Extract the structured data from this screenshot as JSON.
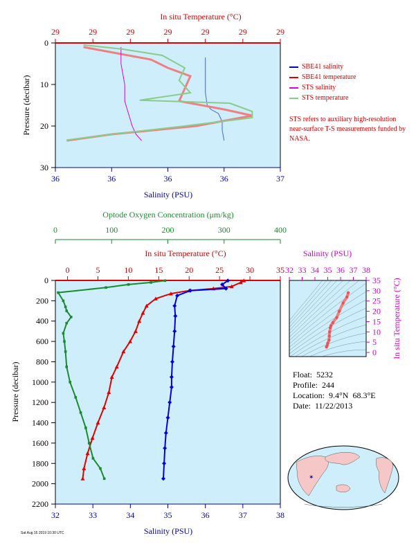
{
  "colors": {
    "plot_bg": "#cdeefa",
    "temperature": "#e10000",
    "salinity": "#0000dd",
    "oxygen": "#1a8a2f",
    "sts_salinity": "#dd00dd",
    "sts_temperature": "#88cc88",
    "ts_axis": "#cc00cc"
  },
  "legend": [
    {
      "label": "SBE41 salinity",
      "color": "#0000cc"
    },
    {
      "label": "SBE41 temperature",
      "color": "#dd0000"
    },
    {
      "label": "STS salinity",
      "color": "#dd00dd"
    },
    {
      "label": "STS temperature",
      "color": "#88cc88"
    }
  ],
  "note": "STS refers to auxiliary high-resolution near-surface T-S measurements funded by NASA.",
  "info": {
    "float": "Float:  5232",
    "profile": "Profile:  244",
    "location": "Location:  9.4°N  68.3°E",
    "date": "Date:  11/22/2013"
  },
  "footer": "Sat Aug 16 2019 10:30 UTC",
  "chart_data": [
    {
      "type": "line",
      "panel": "near-surface",
      "ylabel": "Pressure (decibar)",
      "ylim": [
        30,
        0
      ],
      "yticks": [
        "0",
        "10",
        "20",
        "30"
      ],
      "x_bottom": {
        "label": "Salinity (PSU)",
        "ticks": [
          "36",
          "36",
          "36",
          "36",
          "37"
        ],
        "range": [
          35.8,
          37.0
        ]
      },
      "x_top": {
        "label": "In situ Temperature (°C)",
        "ticks": [
          "29",
          "29",
          "29",
          "29",
          "29",
          "29",
          "29"
        ],
        "range": [
          28.9,
          29.3
        ]
      },
      "series": [
        {
          "name": "SBE41 salinity",
          "axis": "bottom",
          "values": [
            [
              36.6,
              3.5
            ],
            [
              36.6,
              8
            ],
            [
              36.6,
              12
            ],
            [
              36.61,
              15
            ],
            [
              36.63,
              16
            ],
            [
              36.67,
              17
            ],
            [
              36.68,
              18
            ],
            [
              36.69,
              19
            ],
            [
              36.69,
              21
            ],
            [
              36.7,
              23.5
            ]
          ]
        },
        {
          "name": "SBE41 temperature",
          "axis": "top",
          "values": [
            [
              28.95,
              1
            ],
            [
              29.07,
              4
            ],
            [
              29.1,
              6
            ],
            [
              29.14,
              8
            ],
            [
              29.13,
              11
            ],
            [
              29.12,
              14
            ],
            [
              29.2,
              16
            ],
            [
              29.25,
              17.5
            ],
            [
              29.15,
              20
            ],
            [
              29.0,
              22
            ],
            [
              28.92,
              23.5
            ]
          ]
        },
        {
          "name": "STS salinity",
          "axis": "bottom",
          "values": [
            [
              36.15,
              1
            ],
            [
              36.15,
              5
            ],
            [
              36.17,
              10
            ],
            [
              36.17,
              14
            ],
            [
              36.19,
              17
            ],
            [
              36.21,
              20
            ],
            [
              36.23,
              22
            ],
            [
              36.26,
              23.5
            ]
          ]
        },
        {
          "name": "STS temperature",
          "axis": "top",
          "values": [
            [
              28.95,
              0.5
            ],
            [
              29.02,
              1.5
            ],
            [
              29.09,
              3
            ],
            [
              29.13,
              6
            ],
            [
              29.12,
              9
            ],
            [
              29.14,
              12
            ],
            [
              29.05,
              13.8
            ],
            [
              29.21,
              14.5
            ],
            [
              29.25,
              16.5
            ],
            [
              29.25,
              18
            ],
            [
              29.13,
              20
            ],
            [
              29.0,
              22
            ],
            [
              28.92,
              23.4
            ]
          ]
        }
      ]
    },
    {
      "type": "line",
      "panel": "full-profile",
      "ylabel": "Pressure (decibar)",
      "ylim": [
        2200,
        0
      ],
      "yticks": [
        "0",
        "200",
        "400",
        "600",
        "800",
        "1000",
        "1200",
        "1400",
        "1600",
        "1800",
        "2000",
        "2200"
      ],
      "x_bottom": {
        "label": "Salinity (PSU)",
        "ticks": [
          "32",
          "33",
          "34",
          "35",
          "36",
          "37",
          "38"
        ],
        "range": [
          32,
          38
        ]
      },
      "x_mid": {
        "label": "In situ Temperature (°C)",
        "ticks": [
          "0",
          "5",
          "10",
          "15",
          "20",
          "25",
          "30",
          "35"
        ],
        "range": [
          -2,
          35
        ]
      },
      "x_top": {
        "label": "Optode Oxygen Concentration (μm/kg)",
        "ticks": [
          "0",
          "100",
          "200",
          "300",
          "400"
        ],
        "range": [
          0,
          400
        ]
      },
      "series": [
        {
          "name": "Temperature",
          "axis": "mid",
          "values": [
            [
              29,
              2
            ],
            [
              28.5,
              20
            ],
            [
              27,
              60
            ],
            [
              24,
              80
            ],
            [
              20,
              100
            ],
            [
              17,
              130
            ],
            [
              14.5,
              180
            ],
            [
              13,
              250
            ],
            [
              12.4,
              320
            ],
            [
              11.8,
              400
            ],
            [
              11.2,
              500
            ],
            [
              10.3,
              600
            ],
            [
              9.2,
              700
            ],
            [
              8.1,
              850
            ],
            [
              7.3,
              950
            ],
            [
              6.8,
              1100
            ],
            [
              6,
              1250
            ],
            [
              5,
              1400
            ],
            [
              4.1,
              1550
            ],
            [
              3.3,
              1700
            ],
            [
              2.7,
              1850
            ],
            [
              2.5,
              1950
            ]
          ]
        },
        {
          "name": "Salinity",
          "axis": "bottom",
          "values": [
            [
              36.6,
              2
            ],
            [
              36.45,
              40
            ],
            [
              36.55,
              80
            ],
            [
              35.6,
              100
            ],
            [
              35.25,
              150
            ],
            [
              35.18,
              250
            ],
            [
              35.2,
              350
            ],
            [
              35.18,
              500
            ],
            [
              35.15,
              650
            ],
            [
              35.12,
              800
            ],
            [
              35.1,
              950
            ],
            [
              35.1,
              1050
            ],
            [
              35.05,
              1200
            ],
            [
              35.0,
              1350
            ],
            [
              34.95,
              1500
            ],
            [
              34.92,
              1650
            ],
            [
              34.9,
              1800
            ],
            [
              34.88,
              1950
            ]
          ]
        },
        {
          "name": "Oxygen",
          "axis": "top",
          "values": [
            [
              195,
              2
            ],
            [
              170,
              20
            ],
            [
              130,
              40
            ],
            [
              90,
              70
            ],
            [
              5,
              120
            ],
            [
              14,
              200
            ],
            [
              18,
              260
            ],
            [
              20,
              300
            ],
            [
              28,
              360
            ],
            [
              20,
              420
            ],
            [
              14,
              520
            ],
            [
              16,
              600
            ],
            [
              18,
              700
            ],
            [
              20,
              850
            ],
            [
              26,
              1000
            ],
            [
              36,
              1150
            ],
            [
              45,
              1300
            ],
            [
              54,
              1450
            ],
            [
              60,
              1600
            ],
            [
              67,
              1750
            ],
            [
              80,
              1850
            ],
            [
              87,
              1950
            ]
          ]
        }
      ]
    },
    {
      "type": "scatter",
      "panel": "T-S diagram",
      "xlabel": "Salinity (PSU)",
      "ylabel": "In situ Temperature (°C)",
      "xticks": [
        "32",
        "33",
        "34",
        "35",
        "36",
        "37",
        "38"
      ],
      "yticks": [
        "0",
        "5",
        "10",
        "15",
        "20",
        "25",
        "30",
        "35"
      ],
      "xlim": [
        32,
        38
      ],
      "ylim": [
        -2,
        35
      ],
      "values": [
        [
          36.6,
          29
        ],
        [
          36.5,
          27
        ],
        [
          36.2,
          24
        ],
        [
          35.9,
          20
        ],
        [
          35.7,
          17
        ],
        [
          35.4,
          14.5
        ],
        [
          35.25,
          13
        ],
        [
          35.2,
          12
        ],
        [
          35.15,
          10
        ],
        [
          35.12,
          8
        ],
        [
          35.1,
          6
        ],
        [
          35.0,
          4.5
        ],
        [
          34.95,
          3.3
        ],
        [
          34.9,
          2.7
        ]
      ]
    }
  ]
}
